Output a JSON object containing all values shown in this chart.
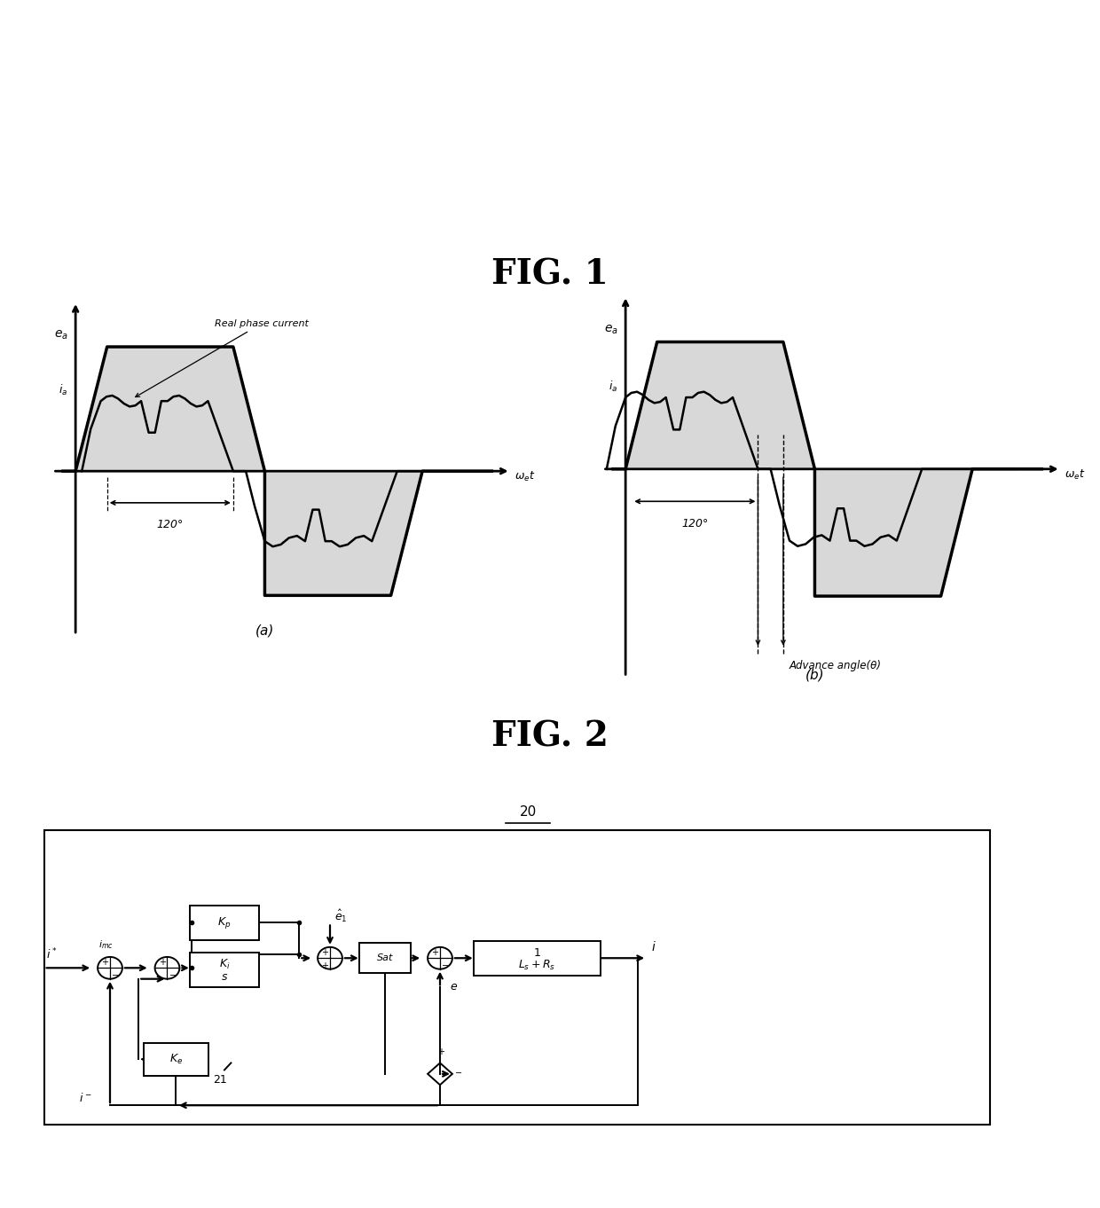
{
  "fig1_title": "FIG. 1",
  "fig2_title": "FIG. 2",
  "subfig_a_label": "(a)",
  "subfig_b_label": "(b)",
  "diagram_label": "20",
  "bg_color": "#ffffff",
  "lc": "#000000",
  "waveform_fill": "#c8c8c8",
  "annotation_a": "Real phase current",
  "annotation_b": "Advance angle(θ)",
  "label_ea": "$e_a$",
  "label_ia": "$i_a$",
  "label_wt": "$\\omega_e t$",
  "label_120": "120°"
}
